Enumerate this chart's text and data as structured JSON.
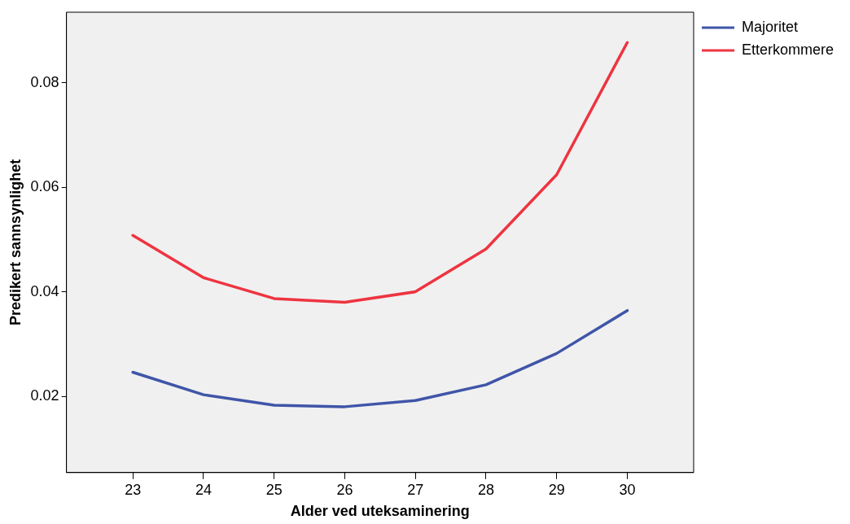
{
  "chart_data": {
    "type": "line",
    "xlabel": "Alder ved uteksaminering",
    "ylabel": "Predikert sannsynlighet",
    "x": [
      23,
      24,
      25,
      26,
      27,
      28,
      29,
      30
    ],
    "series": [
      {
        "name": "Majoritet",
        "color": "#3f55a8",
        "values": [
          0.0246,
          0.0203,
          0.0183,
          0.018,
          0.0192,
          0.0222,
          0.0282,
          0.0364
        ]
      },
      {
        "name": "Etterkommere",
        "color": "#ee3440",
        "values": [
          0.0508,
          0.0427,
          0.0387,
          0.038,
          0.04,
          0.0482,
          0.0624,
          0.0877
        ]
      }
    ],
    "xlim": [
      22.06,
      30.94
    ],
    "xticks": [
      23,
      24,
      25,
      26,
      27,
      28,
      29,
      30
    ],
    "ylim": [
      0.0054,
      0.0935
    ],
    "yticks": [
      0.02,
      0.04,
      0.06,
      0.08
    ],
    "grid": false,
    "legend": "top right",
    "marker": "none",
    "line_style": "solid"
  }
}
